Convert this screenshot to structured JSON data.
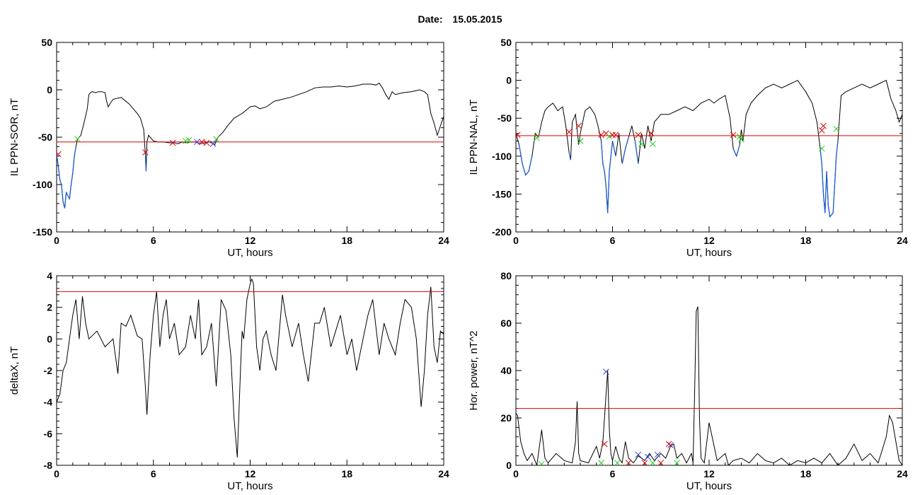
{
  "header": {
    "date_label": "Date:",
    "date_value": "15.05.2015"
  },
  "colors": {
    "trace": "#000000",
    "highlight": "#1f5fd0",
    "threshold": "#e00000",
    "marker_red": "#e00000",
    "marker_green": "#22cc22",
    "marker_blue": "#3344cc"
  },
  "chart_data": [
    {
      "type": "line",
      "xlabel": "UT, hours",
      "ylabel": "IL PPN-SOR, nT",
      "xlim": [
        0,
        24
      ],
      "ylim": [
        -150,
        50
      ],
      "xticks": [
        0,
        6,
        12,
        18,
        24
      ],
      "yticks": [
        -150,
        -100,
        -50,
        0,
        50
      ],
      "threshold": -55,
      "series": [
        {
          "x": [
            0,
            0.1,
            0.2,
            0.3,
            0.4,
            0.5,
            0.6,
            0.7,
            0.8,
            0.9,
            1.0,
            1.1,
            1.2,
            1.3,
            1.4,
            1.5,
            1.7,
            1.9,
            2.0,
            2.1,
            2.2,
            2.4,
            2.6,
            2.8,
            3.0,
            3.1,
            3.2,
            3.3,
            3.5,
            4.0,
            4.5,
            5.0,
            5.2,
            5.4,
            5.5,
            5.55,
            5.6,
            5.7,
            5.8,
            6.0,
            6.3,
            6.6,
            7.0,
            7.3,
            7.5,
            7.8,
            8.0,
            8.3,
            8.6,
            8.9,
            9.2,
            9.5,
            9.8,
            10.0,
            10.3,
            10.6,
            11.0,
            11.5,
            12.0,
            12.3,
            12.6,
            13.0,
            13.5,
            14.0,
            14.5,
            15.0,
            15.5,
            16.0,
            16.5,
            17.0,
            17.5,
            18.0,
            18.5,
            19.0,
            19.5,
            19.8,
            20.0,
            20.2,
            20.4,
            20.6,
            20.8,
            21.0,
            21.5,
            22.0,
            22.5,
            22.8,
            23.0,
            23.2,
            23.4,
            23.6,
            23.8,
            24.0
          ],
          "y": [
            -68,
            -80,
            -95,
            -100,
            -118,
            -125,
            -108,
            -112,
            -115,
            -100,
            -88,
            -70,
            -60,
            -52,
            -50,
            -48,
            -35,
            -20,
            -5,
            -3,
            -2,
            -3,
            -2,
            -2,
            -3,
            -12,
            -18,
            -15,
            -10,
            -8,
            -15,
            -25,
            -30,
            -42,
            -68,
            -86,
            -55,
            -48,
            -50,
            -54,
            -55,
            -55,
            -56,
            -56,
            -57,
            -55,
            -56,
            -55,
            -55,
            -57,
            -56,
            -55,
            -58,
            -50,
            -45,
            -38,
            -30,
            -25,
            -18,
            -17,
            -20,
            -18,
            -12,
            -10,
            -8,
            -5,
            -2,
            2,
            3,
            3,
            4,
            3,
            4,
            6,
            6,
            5,
            7,
            2,
            -5,
            -10,
            -2,
            -5,
            -3,
            -2,
            0,
            -2,
            -5,
            -25,
            -35,
            -48,
            -38,
            -28
          ]
        }
      ],
      "markers": [
        {
          "x": 0.1,
          "y": -68,
          "color": "red"
        },
        {
          "x": 1.3,
          "y": -52,
          "color": "green"
        },
        {
          "x": 5.5,
          "y": -66,
          "color": "red"
        },
        {
          "x": 7.2,
          "y": -56,
          "color": "red"
        },
        {
          "x": 8.0,
          "y": -54,
          "color": "green"
        },
        {
          "x": 8.2,
          "y": -53,
          "color": "green"
        },
        {
          "x": 8.7,
          "y": -55,
          "color": "blue"
        },
        {
          "x": 9.0,
          "y": -55,
          "color": "red"
        },
        {
          "x": 9.3,
          "y": -56,
          "color": "red"
        },
        {
          "x": 9.9,
          "y": -52,
          "color": "green"
        },
        {
          "x": 9.7,
          "y": -57,
          "color": "blue"
        }
      ]
    },
    {
      "type": "line",
      "xlabel": "UT, hours",
      "ylabel": "IL PPN-NAL, nT",
      "xlim": [
        0,
        24
      ],
      "ylim": [
        -200,
        50
      ],
      "xticks": [
        0,
        6,
        12,
        18,
        24
      ],
      "yticks": [
        -200,
        -150,
        -100,
        -50,
        0,
        50
      ],
      "threshold": -73,
      "series": [
        {
          "x": [
            0,
            0.2,
            0.4,
            0.6,
            0.8,
            1.0,
            1.2,
            1.4,
            1.6,
            1.8,
            2.0,
            2.3,
            2.6,
            2.9,
            3.1,
            3.3,
            3.4,
            3.5,
            3.7,
            3.9,
            4.0,
            4.3,
            4.6,
            4.9,
            5.1,
            5.3,
            5.4,
            5.5,
            5.6,
            5.7,
            5.8,
            6.0,
            6.2,
            6.4,
            6.6,
            6.8,
            7.0,
            7.2,
            7.4,
            7.6,
            7.8,
            8.0,
            8.2,
            8.4,
            8.6,
            8.8,
            9.0,
            9.5,
            10.0,
            10.5,
            11.0,
            11.5,
            12.0,
            12.3,
            12.6,
            13.0,
            13.3,
            13.5,
            13.7,
            13.9,
            14.0,
            14.1,
            14.3,
            14.6,
            15.0,
            15.5,
            16.0,
            16.5,
            17.0,
            17.5,
            18.0,
            18.4,
            18.7,
            18.9,
            19.0,
            19.1,
            19.2,
            19.3,
            19.4,
            19.5,
            19.7,
            19.9,
            20.0,
            20.2,
            20.5,
            21.0,
            21.5,
            22.0,
            22.5,
            23.0,
            23.3,
            23.6,
            23.8,
            24.0
          ],
          "y": [
            -70,
            -85,
            -110,
            -125,
            -120,
            -100,
            -70,
            -75,
            -55,
            -40,
            -35,
            -30,
            -40,
            -35,
            -60,
            -95,
            -105,
            -55,
            -45,
            -85,
            -70,
            -40,
            -35,
            -45,
            -60,
            -80,
            -110,
            -120,
            -140,
            -175,
            -120,
            -80,
            -100,
            -70,
            -110,
            -90,
            -75,
            -60,
            -80,
            -110,
            -70,
            -90,
            -60,
            -80,
            -55,
            -50,
            -45,
            -45,
            -40,
            -35,
            -40,
            -30,
            -25,
            -30,
            -25,
            -20,
            -50,
            -90,
            -100,
            -85,
            -65,
            -80,
            -45,
            -30,
            -20,
            -10,
            -5,
            -10,
            -5,
            0,
            -15,
            -30,
            -55,
            -90,
            -110,
            -150,
            -175,
            -120,
            -165,
            -180,
            -175,
            -100,
            -80,
            -20,
            -15,
            -10,
            -5,
            -10,
            -5,
            0,
            -25,
            -40,
            -55,
            -45
          ]
        }
      ],
      "markers": [
        {
          "x": 0.1,
          "y": -72,
          "color": "red"
        },
        {
          "x": 1.3,
          "y": -76,
          "color": "green"
        },
        {
          "x": 3.3,
          "y": -68,
          "color": "red"
        },
        {
          "x": 3.9,
          "y": -60,
          "color": "red"
        },
        {
          "x": 4.0,
          "y": -80,
          "color": "green"
        },
        {
          "x": 5.3,
          "y": -72,
          "color": "red"
        },
        {
          "x": 5.6,
          "y": -70,
          "color": "red"
        },
        {
          "x": 5.8,
          "y": -74,
          "color": "green"
        },
        {
          "x": 6.0,
          "y": -72,
          "color": "red"
        },
        {
          "x": 6.2,
          "y": -72,
          "color": "red"
        },
        {
          "x": 7.6,
          "y": -72,
          "color": "red"
        },
        {
          "x": 7.8,
          "y": -84,
          "color": "green"
        },
        {
          "x": 8.4,
          "y": -70,
          "color": "red"
        },
        {
          "x": 8.5,
          "y": -84,
          "color": "green"
        },
        {
          "x": 13.5,
          "y": -72,
          "color": "red"
        },
        {
          "x": 13.9,
          "y": -74,
          "color": "green"
        },
        {
          "x": 14.0,
          "y": -78,
          "color": "green"
        },
        {
          "x": 19.0,
          "y": -66,
          "color": "red"
        },
        {
          "x": 19.1,
          "y": -60,
          "color": "red"
        },
        {
          "x": 19.0,
          "y": -90,
          "color": "green"
        },
        {
          "x": 19.9,
          "y": -64,
          "color": "green"
        }
      ]
    },
    {
      "type": "line",
      "xlabel": "UT, hours",
      "ylabel": "deltaX, nT",
      "xlim": [
        0,
        24
      ],
      "ylim": [
        -8,
        4
      ],
      "xticks": [
        0,
        6,
        12,
        18,
        24
      ],
      "yticks": [
        -8,
        -6,
        -4,
        -2,
        0,
        2,
        4
      ],
      "threshold": 3,
      "series": [
        {
          "x": [
            0,
            0.2,
            0.4,
            0.6,
            0.8,
            1.0,
            1.2,
            1.4,
            1.6,
            1.8,
            2.0,
            2.5,
            3.0,
            3.5,
            3.8,
            4.0,
            4.3,
            4.6,
            5.0,
            5.3,
            5.5,
            5.6,
            5.8,
            6.0,
            6.2,
            6.4,
            6.6,
            6.8,
            7.0,
            7.3,
            7.6,
            8.0,
            8.3,
            8.6,
            8.8,
            9.0,
            9.3,
            9.6,
            9.9,
            10.2,
            10.5,
            10.8,
            11.0,
            11.2,
            11.4,
            11.5,
            11.6,
            11.8,
            12.0,
            12.1,
            12.2,
            12.4,
            12.6,
            12.8,
            13.0,
            13.3,
            13.6,
            14.0,
            14.2,
            14.6,
            15.0,
            15.3,
            15.6,
            16.0,
            16.3,
            16.6,
            17.0,
            17.3,
            17.6,
            18.0,
            18.3,
            18.6,
            19.0,
            19.3,
            19.6,
            20.0,
            20.3,
            20.6,
            21.0,
            21.3,
            21.6,
            22.0,
            22.3,
            22.6,
            22.8,
            23.0,
            23.2,
            23.4,
            23.6,
            23.8,
            24.0
          ],
          "y": [
            -4.0,
            -3.5,
            -2.0,
            -1.5,
            0.0,
            1.5,
            2.5,
            0.0,
            2.7,
            1.0,
            0.0,
            0.5,
            -0.5,
            0.0,
            -2.2,
            1.0,
            0.8,
            1.5,
            0.2,
            0.0,
            -3.0,
            -4.8,
            -1.0,
            1.5,
            3.0,
            -0.5,
            1.5,
            2.5,
            0.0,
            1.0,
            -1.0,
            -0.5,
            1.5,
            0.0,
            2.5,
            -1.0,
            -0.5,
            1.0,
            -3.0,
            2.5,
            1.8,
            -1.0,
            -5.0,
            -7.5,
            -2.0,
            0.5,
            0.0,
            2.5,
            3.5,
            3.8,
            3.5,
            -0.5,
            -2.0,
            0.0,
            0.5,
            -1.0,
            -2.0,
            2.8,
            1.5,
            -0.5,
            1.0,
            -1.0,
            -2.7,
            1.0,
            1.0,
            2.0,
            -0.5,
            0.5,
            1.5,
            -1.0,
            0.0,
            -2.0,
            0.0,
            1.5,
            2.5,
            -1.0,
            1.0,
            0.0,
            -1.0,
            1.0,
            2.5,
            2.0,
            0.0,
            -4.3,
            -2.0,
            1.5,
            3.3,
            -0.5,
            -1.5,
            0.5,
            0.3
          ]
        }
      ],
      "markers": []
    },
    {
      "type": "line",
      "xlabel": "UT, hours",
      "ylabel": "Hor. power, nT^2",
      "xlim": [
        0,
        24
      ],
      "ylim": [
        0,
        80
      ],
      "xticks": [
        0,
        6,
        12,
        18,
        24
      ],
      "yticks": [
        0,
        20,
        40,
        60,
        80
      ],
      "threshold": 24,
      "series": [
        {
          "x": [
            0,
            0.1,
            0.3,
            0.5,
            0.7,
            1.0,
            1.3,
            1.6,
            1.8,
            2.0,
            2.5,
            3.0,
            3.5,
            3.7,
            3.8,
            3.9,
            4.0,
            4.5,
            5.0,
            5.2,
            5.4,
            5.6,
            5.7,
            5.8,
            5.9,
            6.0,
            6.2,
            6.4,
            6.6,
            6.8,
            7.0,
            7.3,
            7.6,
            8.0,
            8.3,
            8.6,
            9.0,
            9.3,
            9.6,
            9.8,
            10.0,
            10.3,
            10.6,
            10.9,
            11.0,
            11.1,
            11.2,
            11.3,
            11.4,
            11.5,
            11.7,
            12.0,
            12.5,
            13.0,
            13.2,
            13.5,
            14.0,
            14.5,
            15.0,
            15.5,
            16.0,
            16.5,
            17.0,
            17.5,
            18.0,
            18.5,
            19.0,
            19.5,
            20.0,
            20.5,
            21.0,
            21.5,
            22.0,
            22.5,
            23.0,
            23.2,
            23.4,
            23.6,
            23.8,
            24.0
          ],
          "y": [
            22,
            21,
            10,
            5,
            2,
            5,
            0,
            15,
            3,
            1,
            5,
            2,
            1,
            10,
            27,
            5,
            2,
            1,
            8,
            3,
            10,
            30,
            40,
            15,
            5,
            2,
            8,
            3,
            1,
            10,
            3,
            1,
            4,
            2,
            5,
            2,
            5,
            3,
            8,
            9,
            3,
            5,
            1,
            5,
            1,
            30,
            65,
            67,
            20,
            3,
            1,
            18,
            2,
            5,
            0,
            2,
            3,
            1,
            5,
            2,
            1,
            3,
            0,
            2,
            1,
            3,
            1,
            5,
            0,
            3,
            9,
            2,
            5,
            1,
            12,
            21,
            18,
            10,
            2,
            0
          ]
        }
      ],
      "markers": [
        {
          "x": 5.6,
          "y": 39.5,
          "color": "blue"
        },
        {
          "x": 5.5,
          "y": 9,
          "color": "red"
        },
        {
          "x": 5.3,
          "y": 1,
          "color": "green"
        },
        {
          "x": 7.6,
          "y": 4.5,
          "color": "blue"
        },
        {
          "x": 8.2,
          "y": 3.5,
          "color": "blue"
        },
        {
          "x": 8.8,
          "y": 4.5,
          "color": "blue"
        },
        {
          "x": 9.6,
          "y": 8.5,
          "color": "blue"
        },
        {
          "x": 9.5,
          "y": 9,
          "color": "red"
        },
        {
          "x": 7.0,
          "y": 1,
          "color": "red"
        },
        {
          "x": 8.0,
          "y": 1,
          "color": "red"
        },
        {
          "x": 9.0,
          "y": 1,
          "color": "red"
        },
        {
          "x": 6.3,
          "y": 1,
          "color": "green"
        },
        {
          "x": 8.5,
          "y": 1,
          "color": "green"
        },
        {
          "x": 10.0,
          "y": 1,
          "color": "green"
        },
        {
          "x": 1.6,
          "y": 0.5,
          "color": "green"
        }
      ]
    }
  ]
}
